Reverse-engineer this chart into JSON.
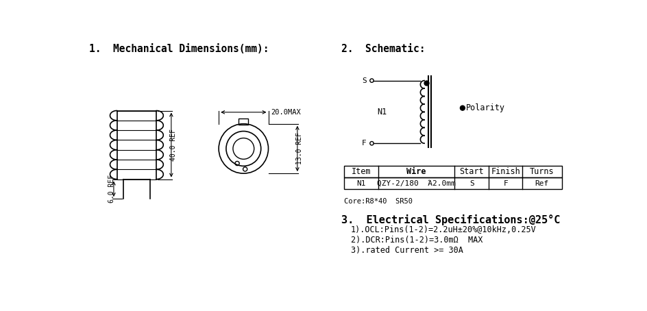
{
  "bg_color": "#ffffff",
  "line_color": "#000000",
  "title1": "1.  Mechanical Dimensions(mm):",
  "title2": "2.  Schematic:",
  "title3": "3.  Electrical Specifications:@25°C",
  "dim_40": "40.0 REF",
  "dim_6": "6.0 REF",
  "dim_20": "20.0MAX",
  "dim_13": "13.0 REF",
  "spec1": "1).OCL:Pins(1-2)=2.2uH±20%@10kHz,0.25V",
  "spec2": "2).DCR:Pins(1-2)=3.0mΩ  MAX",
  "spec3": "3).rated Current >= 30A",
  "core_text": "Core:R8*40  SR50",
  "table_headers": [
    "Item",
    "Wire",
    "Start",
    "Finish",
    "Turns"
  ],
  "table_row": [
    "N1",
    "QZY-2/180  Ά2.0mm",
    "S",
    "F",
    "Ref"
  ],
  "schematic_S": "S",
  "schematic_F": "F",
  "schematic_N1": "N1",
  "polarity_text": "Polarity"
}
